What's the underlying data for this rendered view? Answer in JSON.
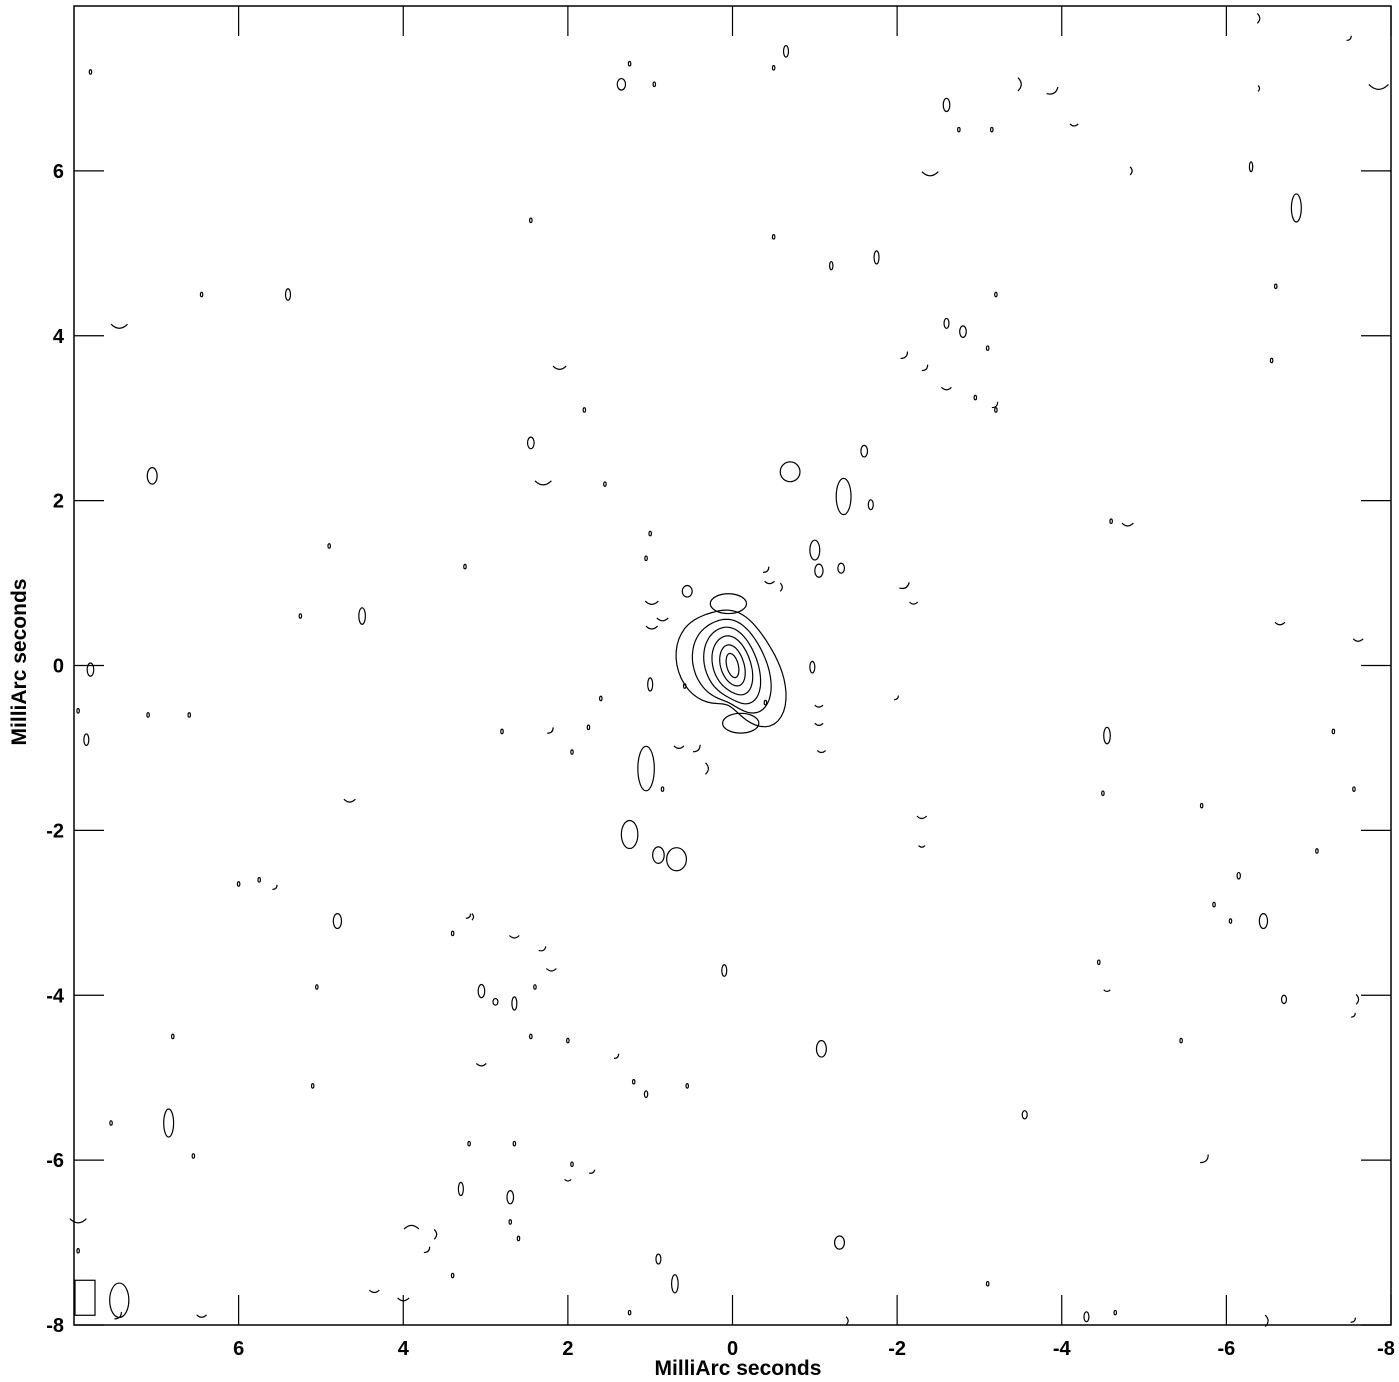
{
  "chart_data": {
    "type": "contour",
    "title": "",
    "xlabel": "MilliArc seconds",
    "ylabel": "MilliArc seconds",
    "xlim": [
      8,
      -8
    ],
    "ylim": [
      -8,
      8
    ],
    "x_ticks": [
      6,
      4,
      2,
      0,
      -2,
      -4,
      -6,
      -8
    ],
    "y_ticks": [
      6,
      4,
      2,
      0,
      -2,
      -4,
      -6,
      -8
    ],
    "x_tick_labels": [
      "6",
      "4",
      "2",
      "0",
      "-2",
      "-4",
      "-6",
      "-8"
    ],
    "y_tick_labels": [
      "6",
      "4",
      "2",
      "0",
      "-2",
      "-4",
      "-6",
      "-8"
    ],
    "grid": false,
    "core": {
      "x": 0.0,
      "y": 0.0,
      "levels": 6
    },
    "beam": {
      "x": 7.45,
      "y": -7.7,
      "width": 0.16,
      "height": 0.32
    },
    "blobs": [
      {
        "x": -0.7,
        "y": 2.35,
        "rx": 0.12,
        "ry": 0.12
      },
      {
        "x": -1.35,
        "y": 2.05,
        "rx": 0.09,
        "ry": 0.22
      },
      {
        "x": -1.6,
        "y": 2.6,
        "rx": 0.04,
        "ry": 0.07
      },
      {
        "x": -1.68,
        "y": 1.95,
        "rx": 0.03,
        "ry": 0.06
      },
      {
        "x": -1.0,
        "y": 1.4,
        "rx": 0.06,
        "ry": 0.12
      },
      {
        "x": -1.05,
        "y": 1.15,
        "rx": 0.05,
        "ry": 0.08
      },
      {
        "x": -1.32,
        "y": 1.18,
        "rx": 0.04,
        "ry": 0.06
      },
      {
        "x": 0.05,
        "y": 0.75,
        "rx": 0.22,
        "ry": 0.12
      },
      {
        "x": 0.55,
        "y": 0.9,
        "rx": 0.06,
        "ry": 0.07
      },
      {
        "x": -0.1,
        "y": -0.7,
        "rx": 0.22,
        "ry": 0.12
      },
      {
        "x": 1.05,
        "y": -1.25,
        "rx": 0.1,
        "ry": 0.27
      },
      {
        "x": 1.25,
        "y": -2.05,
        "rx": 0.1,
        "ry": 0.17
      },
      {
        "x": 0.9,
        "y": -2.3,
        "rx": 0.07,
        "ry": 0.1
      },
      {
        "x": 0.68,
        "y": -2.35,
        "rx": 0.12,
        "ry": 0.14
      },
      {
        "x": 1.0,
        "y": -0.23,
        "rx": 0.03,
        "ry": 0.08
      },
      {
        "x": -0.97,
        "y": -0.02,
        "rx": 0.03,
        "ry": 0.07
      },
      {
        "x": 7.05,
        "y": 2.3,
        "rx": 0.06,
        "ry": 0.1
      },
      {
        "x": 5.4,
        "y": 4.5,
        "rx": 0.03,
        "ry": 0.07
      },
      {
        "x": 4.5,
        "y": 0.6,
        "rx": 0.04,
        "ry": 0.1
      },
      {
        "x": 7.8,
        "y": -0.05,
        "rx": 0.04,
        "ry": 0.08
      },
      {
        "x": 7.85,
        "y": -0.9,
        "rx": 0.03,
        "ry": 0.07
      },
      {
        "x": 2.45,
        "y": 2.7,
        "rx": 0.04,
        "ry": 0.07
      },
      {
        "x": 1.35,
        "y": 7.05,
        "rx": 0.05,
        "ry": 0.07
      },
      {
        "x": -0.65,
        "y": 7.45,
        "rx": 0.03,
        "ry": 0.07
      },
      {
        "x": -1.75,
        "y": 4.95,
        "rx": 0.03,
        "ry": 0.08
      },
      {
        "x": -1.2,
        "y": 4.85,
        "rx": 0.02,
        "ry": 0.05
      },
      {
        "x": -2.6,
        "y": 6.8,
        "rx": 0.04,
        "ry": 0.08
      },
      {
        "x": -2.6,
        "y": 4.15,
        "rx": 0.03,
        "ry": 0.06
      },
      {
        "x": -2.8,
        "y": 4.05,
        "rx": 0.04,
        "ry": 0.07
      },
      {
        "x": -6.85,
        "y": 5.55,
        "rx": 0.06,
        "ry": 0.17
      },
      {
        "x": -6.3,
        "y": 6.05,
        "rx": 0.02,
        "ry": 0.06
      },
      {
        "x": -4.55,
        "y": -0.85,
        "rx": 0.04,
        "ry": 0.1
      },
      {
        "x": -6.45,
        "y": -3.1,
        "rx": 0.05,
        "ry": 0.09
      },
      {
        "x": -6.15,
        "y": -2.55,
        "rx": 0.02,
        "ry": 0.04
      },
      {
        "x": 4.8,
        "y": -3.1,
        "rx": 0.05,
        "ry": 0.09
      },
      {
        "x": 6.85,
        "y": -5.55,
        "rx": 0.06,
        "ry": 0.17
      },
      {
        "x": 3.05,
        "y": -3.95,
        "rx": 0.04,
        "ry": 0.08
      },
      {
        "x": 2.88,
        "y": -4.08,
        "rx": 0.03,
        "ry": 0.04
      },
      {
        "x": 2.65,
        "y": -4.1,
        "rx": 0.03,
        "ry": 0.08
      },
      {
        "x": 0.1,
        "y": -3.7,
        "rx": 0.03,
        "ry": 0.07
      },
      {
        "x": -1.08,
        "y": -4.65,
        "rx": 0.06,
        "ry": 0.1
      },
      {
        "x": 1.05,
        "y": -5.2,
        "rx": 0.02,
        "ry": 0.04
      },
      {
        "x": 2.7,
        "y": -6.45,
        "rx": 0.04,
        "ry": 0.08
      },
      {
        "x": 3.3,
        "y": -6.35,
        "rx": 0.03,
        "ry": 0.08
      },
      {
        "x": -1.3,
        "y": -7.0,
        "rx": 0.06,
        "ry": 0.08
      },
      {
        "x": 0.7,
        "y": -7.5,
        "rx": 0.04,
        "ry": 0.11
      },
      {
        "x": 0.9,
        "y": -7.2,
        "rx": 0.03,
        "ry": 0.06
      },
      {
        "x": -3.55,
        "y": -5.45,
        "rx": 0.03,
        "ry": 0.05
      },
      {
        "x": -4.3,
        "y": -7.9,
        "rx": 0.03,
        "ry": 0.06
      },
      {
        "x": -6.7,
        "y": -4.05,
        "rx": 0.03,
        "ry": 0.05
      }
    ],
    "arcs": [
      {
        "x": 7.45,
        "y": 4.1,
        "s": 0.1,
        "r": 90
      },
      {
        "x": 2.1,
        "y": 3.6,
        "s": 0.08,
        "r": 90
      },
      {
        "x": 2.3,
        "y": 2.2,
        "s": 0.1,
        "r": 90
      },
      {
        "x": -2.4,
        "y": 5.95,
        "s": 0.1,
        "r": 90
      },
      {
        "x": -3.5,
        "y": 7.05,
        "s": 0.08,
        "r": 0
      },
      {
        "x": -3.9,
        "y": 6.95,
        "s": 0.08,
        "r": 60
      },
      {
        "x": -4.15,
        "y": 6.55,
        "s": 0.05,
        "r": 90
      },
      {
        "x": -4.85,
        "y": 6.0,
        "s": 0.05,
        "r": 0
      },
      {
        "x": -2.1,
        "y": 3.75,
        "s": 0.06,
        "r": 45
      },
      {
        "x": -2.35,
        "y": 3.6,
        "s": 0.05,
        "r": 45
      },
      {
        "x": -2.6,
        "y": 3.35,
        "s": 0.06,
        "r": 90
      },
      {
        "x": -3.2,
        "y": 3.15,
        "s": 0.05,
        "r": 45
      },
      {
        "x": -4.8,
        "y": 1.7,
        "s": 0.07,
        "r": 90
      },
      {
        "x": -2.1,
        "y": 0.95,
        "s": 0.07,
        "r": 60
      },
      {
        "x": -2.2,
        "y": 0.75,
        "s": 0.05,
        "r": 90
      },
      {
        "x": -6.65,
        "y": 0.5,
        "s": 0.06,
        "r": 90
      },
      {
        "x": -7.6,
        "y": 0.3,
        "s": 0.06,
        "r": 90
      },
      {
        "x": -7.85,
        "y": 7.0,
        "s": 0.12,
        "r": 90
      },
      {
        "x": -6.4,
        "y": 7.85,
        "s": 0.06,
        "r": 0
      },
      {
        "x": 0.98,
        "y": 0.75,
        "s": 0.08,
        "r": 90
      },
      {
        "x": 0.85,
        "y": 0.55,
        "s": 0.07,
        "r": 90
      },
      {
        "x": 0.98,
        "y": 0.45,
        "s": 0.07,
        "r": 90
      },
      {
        "x": -0.42,
        "y": 1.15,
        "s": 0.05,
        "r": 45
      },
      {
        "x": -0.45,
        "y": 1.0,
        "s": 0.06,
        "r": 90
      },
      {
        "x": -0.6,
        "y": 0.95,
        "s": 0.05,
        "r": 0
      },
      {
        "x": 0.65,
        "y": -1.0,
        "s": 0.06,
        "r": 90
      },
      {
        "x": 0.42,
        "y": -1.02,
        "s": 0.06,
        "r": 45
      },
      {
        "x": 0.3,
        "y": -1.25,
        "s": 0.07,
        "r": 0
      },
      {
        "x": -1.05,
        "y": -0.5,
        "s": 0.05,
        "r": 90
      },
      {
        "x": -1.05,
        "y": -0.72,
        "s": 0.05,
        "r": 90
      },
      {
        "x": -1.08,
        "y": -1.05,
        "s": 0.05,
        "r": 90
      },
      {
        "x": 2.2,
        "y": -0.8,
        "s": 0.05,
        "r": 45
      },
      {
        "x": 4.65,
        "y": -1.65,
        "s": 0.07,
        "r": 90
      },
      {
        "x": 5.55,
        "y": -2.7,
        "s": 0.04,
        "r": 45
      },
      {
        "x": -2.3,
        "y": -1.85,
        "s": 0.06,
        "r": 90
      },
      {
        "x": -2.3,
        "y": -2.2,
        "s": 0.04,
        "r": 90
      },
      {
        "x": 2.65,
        "y": -3.3,
        "s": 0.06,
        "r": 90
      },
      {
        "x": 2.3,
        "y": -3.45,
        "s": 0.05,
        "r": 60
      },
      {
        "x": 2.2,
        "y": -3.7,
        "s": 0.06,
        "r": 90
      },
      {
        "x": 3.2,
        "y": -3.05,
        "s": 0.04,
        "r": 45
      },
      {
        "x": 3.05,
        "y": -4.85,
        "s": 0.06,
        "r": 90
      },
      {
        "x": 1.4,
        "y": -4.75,
        "s": 0.04,
        "r": 45
      },
      {
        "x": 3.9,
        "y": -6.8,
        "s": 0.09,
        "r": 270
      },
      {
        "x": 3.6,
        "y": -6.9,
        "s": 0.06,
        "r": 0
      },
      {
        "x": 3.7,
        "y": -7.1,
        "s": 0.05,
        "r": 45
      },
      {
        "x": 3.15,
        "y": -3.05,
        "s": 0.04,
        "r": 0
      },
      {
        "x": 1.7,
        "y": -6.15,
        "s": 0.04,
        "r": 60
      },
      {
        "x": 2.0,
        "y": -6.25,
        "s": 0.04,
        "r": 90
      },
      {
        "x": 4.0,
        "y": -7.7,
        "s": 0.07,
        "r": 90
      },
      {
        "x": 4.35,
        "y": -7.6,
        "s": 0.06,
        "r": 90
      },
      {
        "x": 6.45,
        "y": -7.9,
        "s": 0.06,
        "r": 90
      },
      {
        "x": 7.45,
        "y": -7.9,
        "s": 0.06,
        "r": 45
      },
      {
        "x": -5.75,
        "y": -6.0,
        "s": 0.07,
        "r": 45
      },
      {
        "x": -4.55,
        "y": -3.95,
        "s": 0.04,
        "r": 90
      },
      {
        "x": -7.6,
        "y": -4.05,
        "s": 0.06,
        "r": 0
      },
      {
        "x": -7.55,
        "y": -4.25,
        "s": 0.03,
        "r": 45
      },
      {
        "x": -1.4,
        "y": -7.95,
        "s": 0.05,
        "r": 0
      },
      {
        "x": -6.5,
        "y": -7.95,
        "s": 0.07,
        "r": 0
      },
      {
        "x": -7.55,
        "y": -7.95,
        "s": 0.04,
        "r": 45
      },
      {
        "x": 7.95,
        "y": -6.75,
        "s": 0.1,
        "r": 90
      },
      {
        "x": -2.0,
        "y": -0.4,
        "s": 0.03,
        "r": 45
      },
      {
        "x": -7.5,
        "y": 7.6,
        "s": 0.04,
        "r": 45
      },
      {
        "x": -6.4,
        "y": 7.0,
        "s": 0.03,
        "r": 0
      }
    ],
    "dots": [
      [
        7.8,
        7.2
      ],
      [
        6.45,
        4.5
      ],
      [
        4.9,
        1.45
      ],
      [
        3.25,
        1.2
      ],
      [
        2.45,
        5.4
      ],
      [
        1.25,
        7.3
      ],
      [
        0.95,
        7.05
      ],
      [
        -0.5,
        5.2
      ],
      [
        -3.2,
        4.5
      ],
      [
        -2.75,
        6.5
      ],
      [
        -3.15,
        6.5
      ],
      [
        -3.1,
        3.85
      ],
      [
        -2.95,
        3.25
      ],
      [
        -3.2,
        3.1
      ],
      [
        -6.6,
        4.6
      ],
      [
        -6.55,
        3.7
      ],
      [
        -4.6,
        1.75
      ],
      [
        -0.5,
        7.25
      ],
      [
        1.05,
        1.3
      ],
      [
        1.8,
        3.1
      ],
      [
        1.55,
        2.2
      ],
      [
        1.0,
        1.6
      ],
      [
        1.6,
        -0.4
      ],
      [
        1.75,
        -0.75
      ],
      [
        1.95,
        -1.05
      ],
      [
        2.8,
        -0.8
      ],
      [
        7.1,
        -0.6
      ],
      [
        7.95,
        -0.55
      ],
      [
        -4.5,
        -1.55
      ],
      [
        -5.7,
        -1.7
      ],
      [
        -7.3,
        -0.8
      ],
      [
        -7.55,
        -1.5
      ],
      [
        -7.1,
        -2.25
      ],
      [
        -5.85,
        -2.9
      ],
      [
        -6.05,
        -3.1
      ],
      [
        -4.45,
        -3.6
      ],
      [
        -5.45,
        -4.55
      ],
      [
        5.05,
        -3.9
      ],
      [
        5.75,
        -2.6
      ],
      [
        6.8,
        -4.5
      ],
      [
        5.1,
        -5.1
      ],
      [
        3.4,
        -3.25
      ],
      [
        2.4,
        -3.9
      ],
      [
        2.45,
        -4.5
      ],
      [
        2.0,
        -4.55
      ],
      [
        2.7,
        -6.75
      ],
      [
        2.6,
        -6.95
      ],
      [
        3.2,
        -5.8
      ],
      [
        2.65,
        -5.8
      ],
      [
        6.55,
        -5.95
      ],
      [
        7.55,
        -5.55
      ],
      [
        7.95,
        -7.1
      ],
      [
        3.4,
        -7.4
      ],
      [
        1.25,
        -7.85
      ],
      [
        0.55,
        -5.1
      ],
      [
        1.2,
        -5.05
      ],
      [
        1.95,
        -6.05
      ],
      [
        -3.1,
        -7.5
      ],
      [
        -4.65,
        -7.85
      ],
      [
        0.85,
        -1.5
      ],
      [
        -0.4,
        -0.45
      ],
      [
        0.58,
        -0.25
      ],
      [
        6.0,
        -2.65
      ],
      [
        6.6,
        -0.6
      ],
      [
        5.25,
        0.6
      ]
    ]
  }
}
